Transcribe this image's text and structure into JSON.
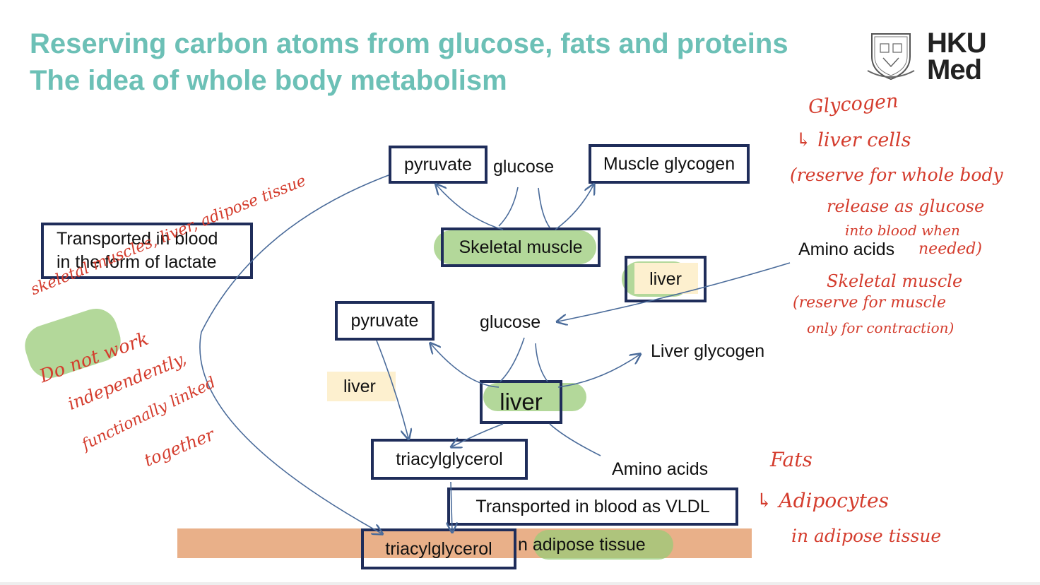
{
  "title_line1": "Reserving carbon atoms from glucose, fats and proteins",
  "title_line2": "The idea of whole body metabolism",
  "logo": {
    "line1": "HKU",
    "line2": "Med",
    "icon": "hku-crest-icon"
  },
  "muscle_section": {
    "pyruvate": "pyruvate",
    "glucose": "glucose",
    "glycogen": "Muscle glycogen",
    "tissue": "Skeletal muscle"
  },
  "lactate_box": {
    "line1": "Transported in blood",
    "line2": "in the form of lactate"
  },
  "liver_section": {
    "liver_top": "liver",
    "amino_acids_top": "Amino acids",
    "pyruvate": "pyruvate",
    "glucose": "glucose",
    "glycogen": "Liver glycogen",
    "liver_side": "liver",
    "liver_center": "liver",
    "triacylglycerol": "triacylglycerol",
    "amino_acids_bottom": "Amino acids",
    "vldl": "Transported in blood as VLDL"
  },
  "adipose": {
    "triacylglycerol": "triacylglycerol",
    "tissue_suffix": "n adipose tissue"
  },
  "annotations": {
    "glycogen_note": [
      "Glycogen",
      "↳ liver cells",
      "(reserve for whole body",
      "release as glucose",
      "into blood when",
      "needed)",
      "Skeletal muscle",
      "(reserve for muscle",
      "only for contraction)"
    ],
    "fats_note": [
      "Fats",
      "↳ Adipocytes",
      "in adipose tissue"
    ],
    "left_note": [
      "skeletal muscles, liver, adipose tissue",
      "Do not work",
      "independently,",
      "functionally linked",
      "together"
    ]
  },
  "colors": {
    "title": "#6cc0b6",
    "box_border": "#1f2d5a",
    "arrow": "#4a6b9a",
    "highlight": "#9acb78",
    "adipose_band": "#e9b089",
    "handwriting": "#d43c2d"
  }
}
